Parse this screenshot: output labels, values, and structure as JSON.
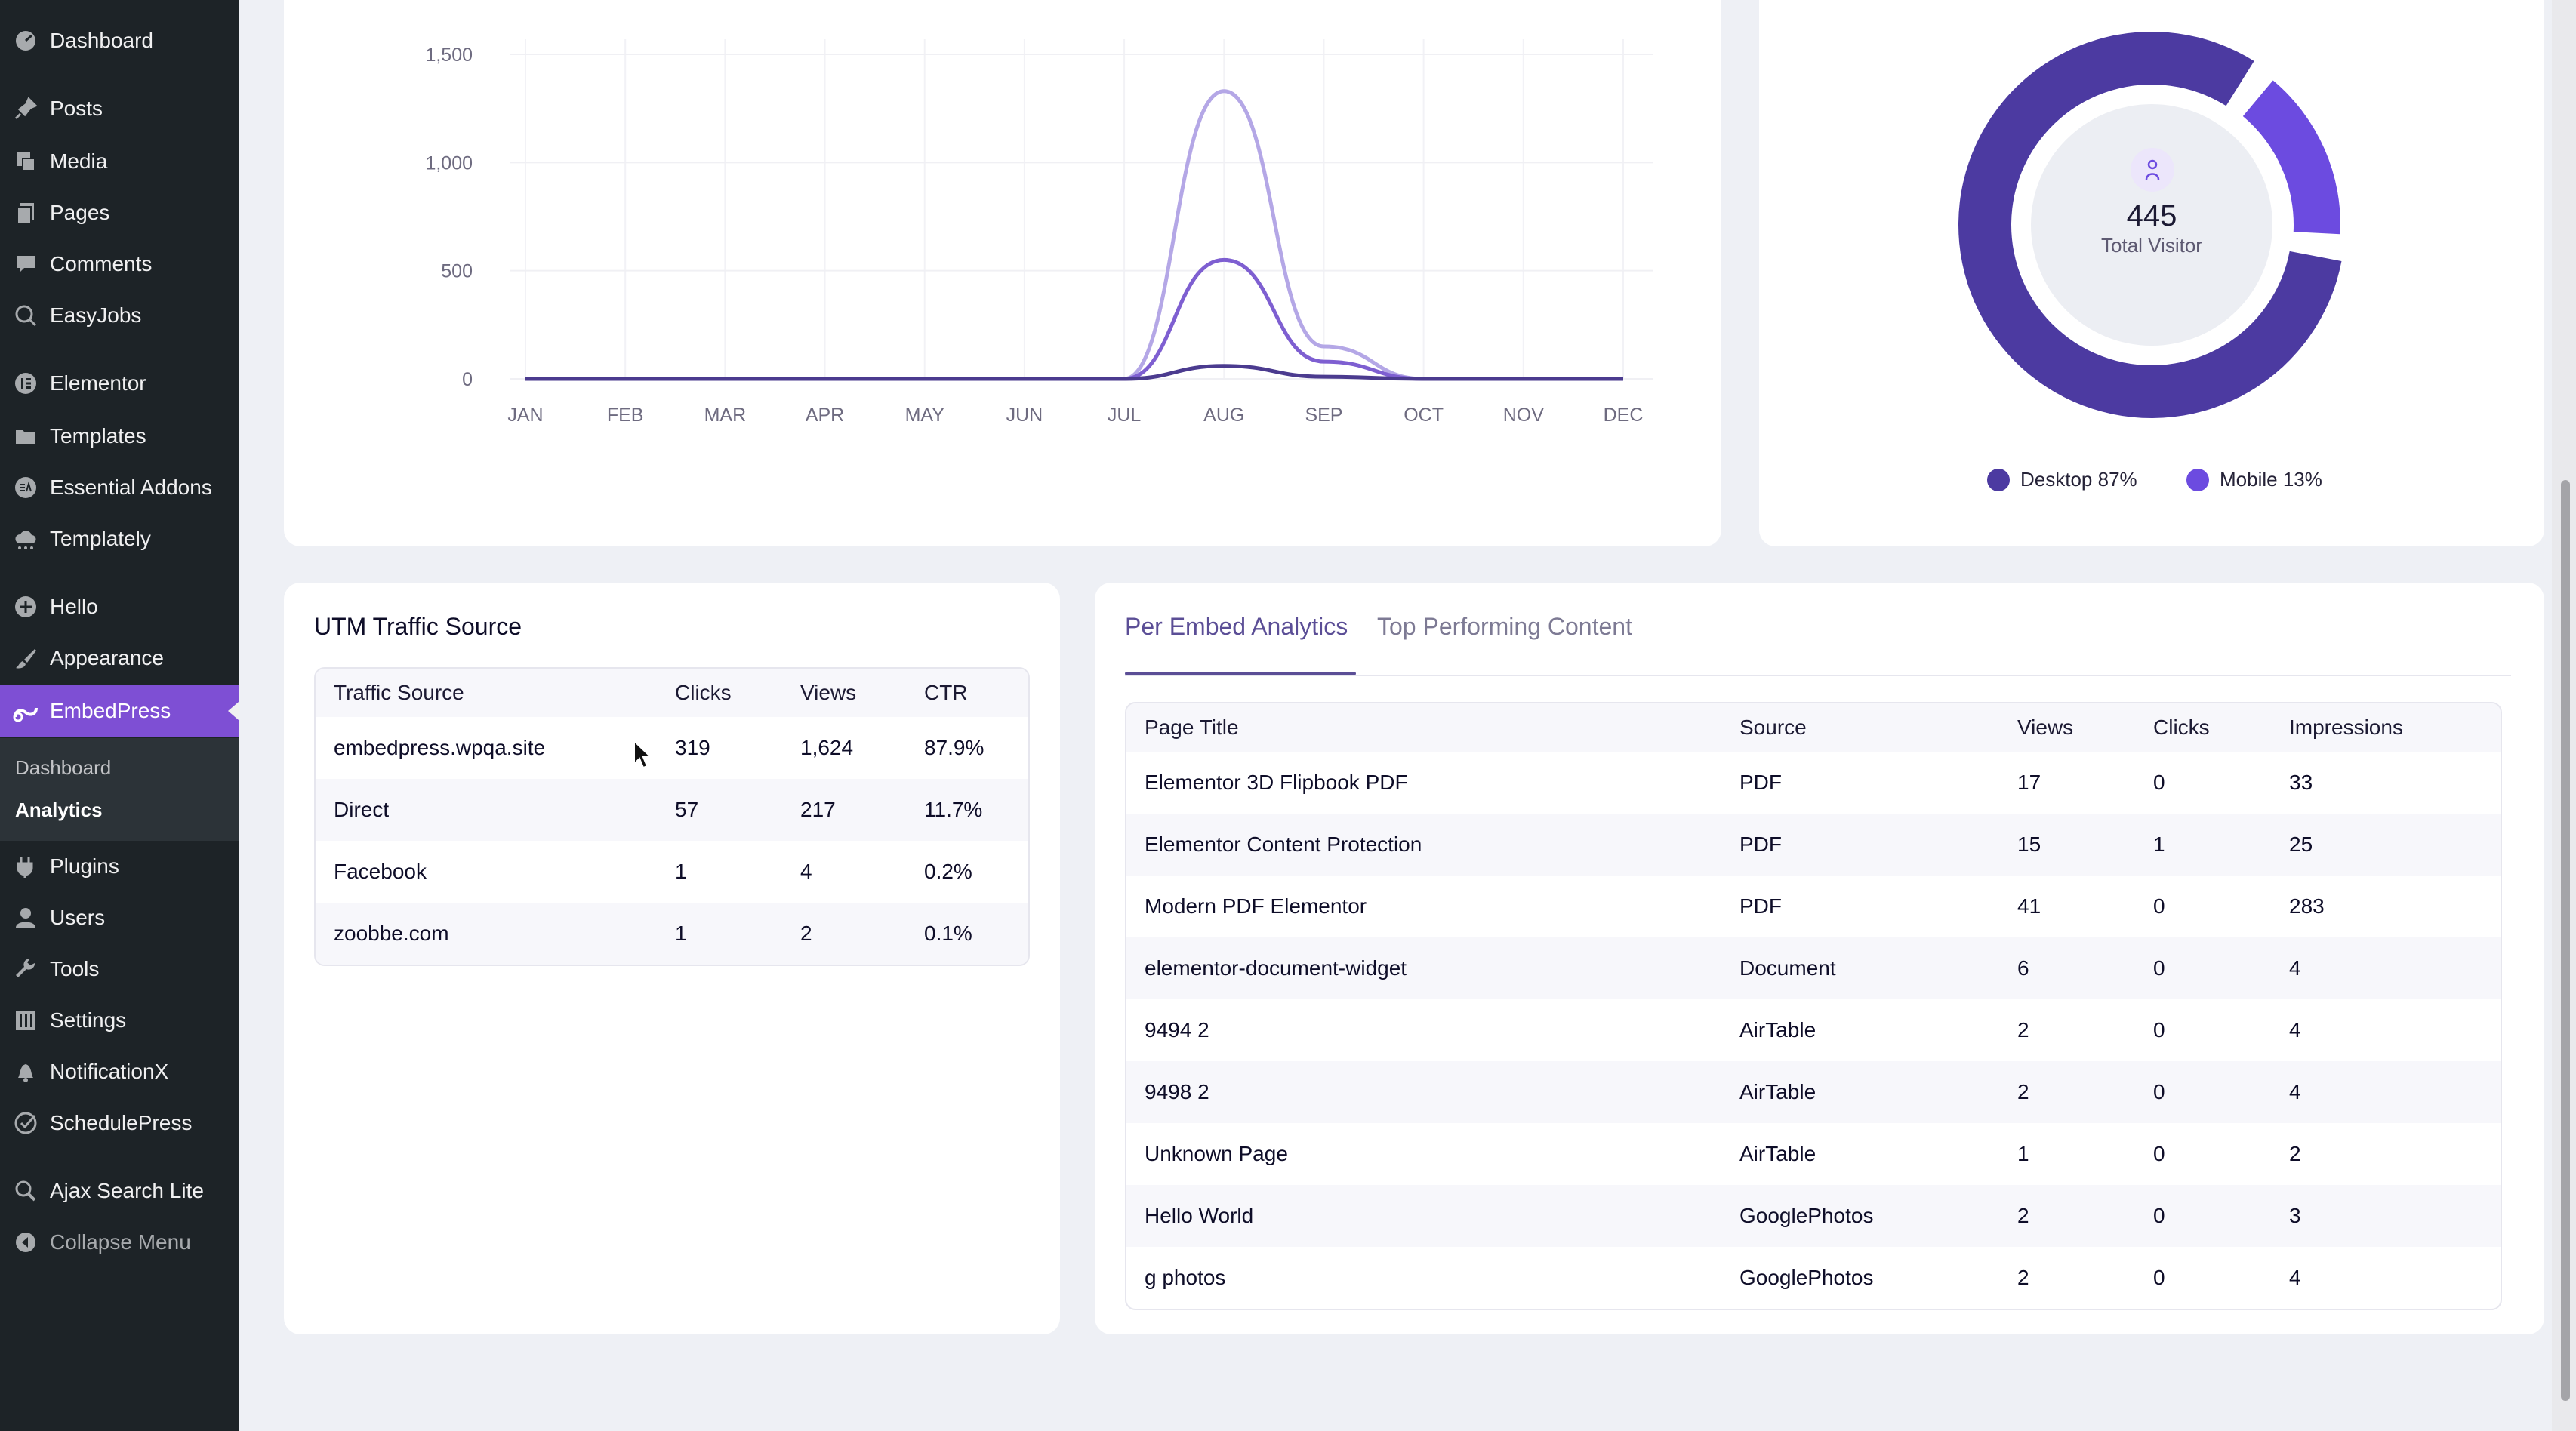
{
  "sidebar": {
    "items": [
      {
        "label": "Dashboard",
        "icon": "dashboard-icon"
      },
      {
        "label": "Posts",
        "icon": "pin-icon"
      },
      {
        "label": "Media",
        "icon": "media-icon"
      },
      {
        "label": "Pages",
        "icon": "pages-icon"
      },
      {
        "label": "Comments",
        "icon": "comment-icon"
      },
      {
        "label": "EasyJobs",
        "icon": "easyjobs-icon"
      },
      {
        "label": "Elementor",
        "icon": "elementor-icon"
      },
      {
        "label": "Templates",
        "icon": "folder-icon"
      },
      {
        "label": "Essential Addons",
        "icon": "ea-icon"
      },
      {
        "label": "Templately",
        "icon": "cloud-icon"
      },
      {
        "label": "Hello",
        "icon": "plus-circle-icon"
      },
      {
        "label": "Appearance",
        "icon": "brush-icon"
      },
      {
        "label": "EmbedPress",
        "icon": "embedpress-icon"
      },
      {
        "label": "Plugins",
        "icon": "plugin-icon"
      },
      {
        "label": "Users",
        "icon": "user-icon"
      },
      {
        "label": "Tools",
        "icon": "wrench-icon"
      },
      {
        "label": "Settings",
        "icon": "settings-icon"
      },
      {
        "label": "NotificationX",
        "icon": "bell-icon"
      },
      {
        "label": "SchedulePress",
        "icon": "schedule-icon"
      },
      {
        "label": "Ajax Search Lite",
        "icon": "search-icon"
      },
      {
        "label": "Collapse Menu",
        "icon": "collapse-icon"
      }
    ],
    "submenu": [
      "Dashboard",
      "Analytics"
    ]
  },
  "chart_data": {
    "type": "line",
    "categories": [
      "JAN",
      "FEB",
      "MAR",
      "APR",
      "MAY",
      "JUN",
      "JUL",
      "AUG",
      "SEP",
      "OCT",
      "NOV",
      "DEC"
    ],
    "ylim": [
      0,
      1500
    ],
    "yticks": [
      "1,500",
      "1,000",
      "500",
      "0"
    ],
    "series": [
      {
        "values": [
          0,
          0,
          0,
          0,
          0,
          0,
          0,
          1330,
          150,
          0,
          0,
          0
        ],
        "color": "#b4a7e6"
      },
      {
        "values": [
          0,
          0,
          0,
          0,
          0,
          0,
          0,
          550,
          80,
          0,
          0,
          0
        ],
        "color": "#7e5fd1"
      },
      {
        "values": [
          0,
          0,
          0,
          0,
          0,
          0,
          0,
          60,
          10,
          0,
          0,
          0
        ],
        "color": "#4b3b8f"
      }
    ],
    "grid": true
  },
  "device": {
    "total": "445",
    "total_label": "Total Visitor",
    "desktop_pct": 87,
    "mobile_pct": 13,
    "legend": [
      {
        "label": "Desktop 87%",
        "color": "#4c3aa1"
      },
      {
        "label": "Mobile 13%",
        "color": "#6c4be0"
      }
    ]
  },
  "utm": {
    "title": "UTM Traffic Source",
    "headers": [
      "Traffic Source",
      "Clicks",
      "Views",
      "CTR"
    ],
    "rows": [
      [
        "embedpress.wpqa.site",
        "319",
        "1,624",
        "87.9%"
      ],
      [
        "Direct",
        "57",
        "217",
        "11.7%"
      ],
      [
        "Facebook",
        "1",
        "4",
        "0.2%"
      ],
      [
        "zoobbe.com",
        "1",
        "2",
        "0.1%"
      ]
    ]
  },
  "embed": {
    "tabs": [
      "Per Embed Analytics",
      "Top Performing Content"
    ],
    "headers": [
      "Page Title",
      "Source",
      "Views",
      "Clicks",
      "Impressions"
    ],
    "rows": [
      [
        "Elementor 3D Flipbook PDF",
        "PDF",
        "17",
        "0",
        "33"
      ],
      [
        "Elementor Content Protection",
        "PDF",
        "15",
        "1",
        "25"
      ],
      [
        "Modern PDF Elementor",
        "PDF",
        "41",
        "0",
        "283"
      ],
      [
        "elementor-document-widget",
        "Document",
        "6",
        "0",
        "4"
      ],
      [
        "9494 2",
        "AirTable",
        "2",
        "0",
        "4"
      ],
      [
        "9498 2",
        "AirTable",
        "2",
        "0",
        "4"
      ],
      [
        "Unknown Page",
        "AirTable",
        "1",
        "0",
        "2"
      ],
      [
        "Hello World",
        "GooglePhotos",
        "2",
        "0",
        "3"
      ],
      [
        "g photos",
        "GooglePhotos",
        "2",
        "0",
        "4"
      ]
    ]
  }
}
